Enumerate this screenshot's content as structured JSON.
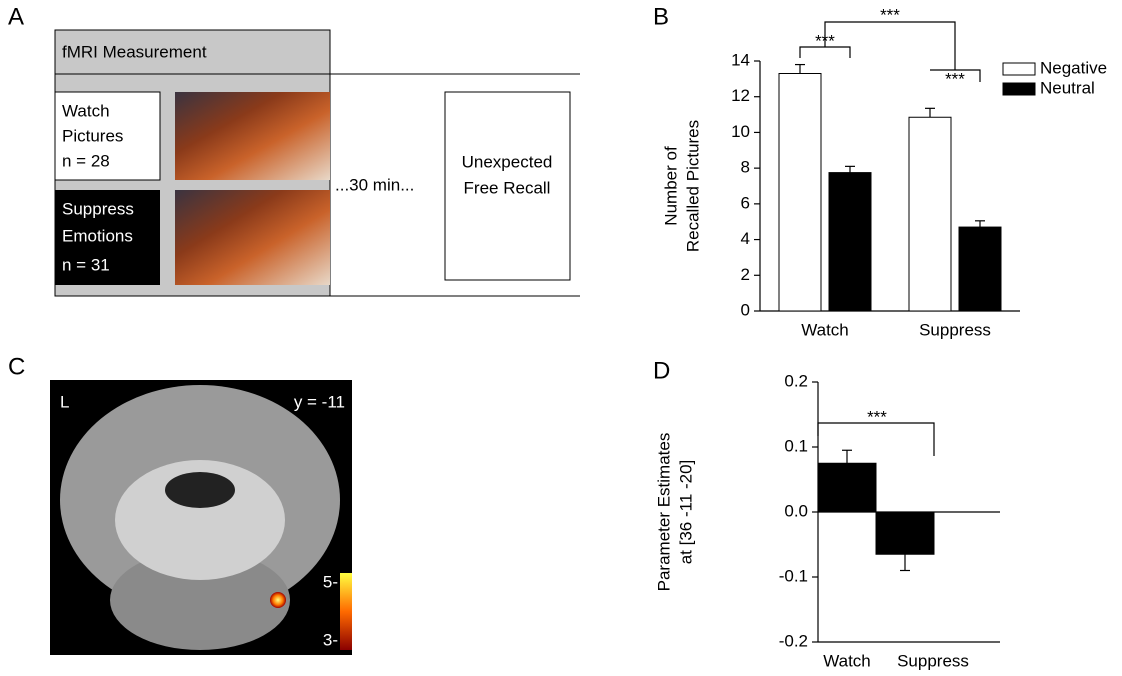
{
  "panel_labels": [
    "A",
    "B",
    "C",
    "D"
  ],
  "diagram": {
    "header": "fMRI Measurement",
    "watch": [
      "Watch",
      "Pictures",
      "n = 28"
    ],
    "suppress": [
      "Suppress",
      "Emotions",
      "n = 31"
    ],
    "delay": "...30 min...",
    "recall": [
      "Unexpected",
      "Free Recall"
    ]
  },
  "brain_image": {
    "side": "L",
    "slice": "y = -11",
    "colorbar_labels": [
      "5-",
      "3-"
    ]
  },
  "chart_data": [
    {
      "type": "bar",
      "ylabel": [
        "Number of",
        "Recalled Pictures"
      ],
      "categories": [
        "Watch",
        "Suppress"
      ],
      "series": [
        {
          "name": "Negative",
          "color": "#ffffff",
          "values": [
            13.3,
            10.85
          ],
          "errors": [
            0.5,
            0.5
          ]
        },
        {
          "name": "Neutral",
          "color": "#000000",
          "values": [
            7.75,
            4.7
          ],
          "errors": [
            0.35,
            0.35
          ]
        }
      ],
      "ylim": [
        0,
        14
      ],
      "yticks": [
        0,
        2,
        4,
        6,
        8,
        10,
        12,
        14
      ],
      "annotations": [
        "***",
        "***",
        "***"
      ],
      "legend": "upper right"
    },
    {
      "type": "bar",
      "ylabel": [
        "Parameter Estimates",
        "at [36 -11 -20]"
      ],
      "categories": [
        "Watch",
        "Suppress"
      ],
      "series": [
        {
          "color": "#000000",
          "values": [
            0.075,
            -0.065
          ],
          "errors": [
            0.02,
            0.025
          ]
        }
      ],
      "ylim": [
        -0.2,
        0.2
      ],
      "yticks": [
        0.2,
        0.1,
        {
          "value": 0,
          "label": "0.0"
        },
        -0.1,
        -0.2
      ],
      "annotations": [
        "***"
      ]
    }
  ]
}
